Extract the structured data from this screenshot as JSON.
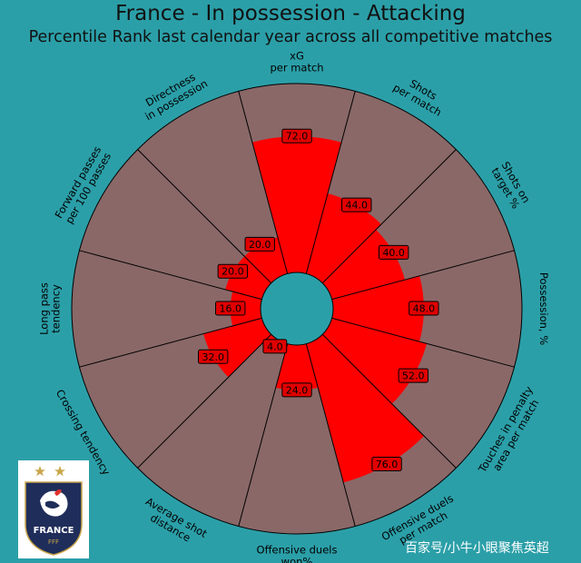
{
  "header": {
    "title": "France - In possession - Attacking",
    "subtitle": "Percentile Rank last calendar year across all competitive matches"
  },
  "chart_data": {
    "type": "polar-bar",
    "title": "France - In possession - Attacking",
    "subtitle": "Percentile Rank last calendar year across all competitive matches",
    "rlim": [
      0,
      100
    ],
    "categories": [
      "xG\nper match",
      "Shots\nper match",
      "Shots on\ntarget %",
      "Possession, %",
      "Touches in penalty\narea per match",
      "Offensive duels\nper match",
      "Offensive duels\nwon%",
      "Average shot\ndistance",
      "Crossing tendency",
      "Long pass\ntendency",
      "Forward passes\nper 100 passes",
      "Directness\nin possession"
    ],
    "values": [
      72.0,
      44.0,
      40.0,
      48.0,
      52.0,
      76.0,
      24.0,
      4.0,
      32.0,
      16.0,
      20.0,
      20.0
    ],
    "value_labels": [
      "72.0",
      "44.0",
      "40.0",
      "48.0",
      "52.0",
      "76.0",
      "24.0",
      "4.0",
      "32.0",
      "16.0",
      "20.0",
      "20.0"
    ],
    "colors": {
      "background": "#2b9fa8",
      "sector": "#8a6868",
      "bar": "#ff0000",
      "label_box": "#e10000",
      "hole": "#2b9fa8"
    }
  },
  "logo": {
    "text": "FRANCE",
    "subtext": "FFF"
  },
  "watermark": "百家号/小牛小眼聚焦英超"
}
